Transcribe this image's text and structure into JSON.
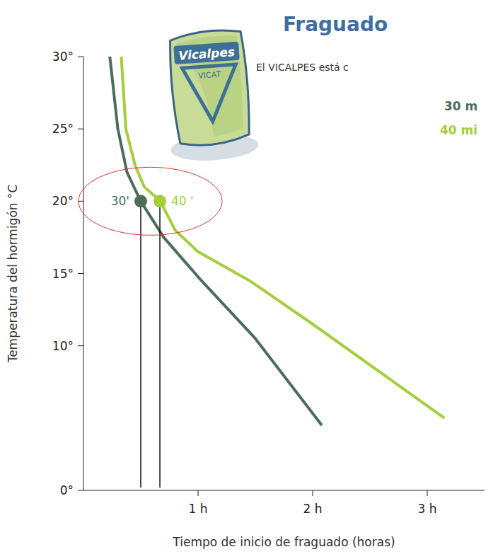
{
  "chart_data": {
    "type": "line",
    "title": "Fraguado",
    "subtitle": "El VICALPES está c",
    "annotations": [
      "30 m",
      "40 mi"
    ],
    "logo": [
      "Vicalpes",
      "VICAT"
    ],
    "x_label": "Tiempo de inicio de fraguado (horas)",
    "y_label": "Temperatura del hormigón °C",
    "xlim": [
      0,
      3.5
    ],
    "xticks": [
      {
        "value": 1,
        "label": "1 h"
      },
      {
        "value": 2,
        "label": "2 h"
      },
      {
        "value": 3,
        "label": "3 h"
      }
    ],
    "ylim": [
      0,
      30
    ],
    "yticks": [
      {
        "value": 0,
        "label": "0°"
      },
      {
        "value": 10,
        "label": "10°"
      },
      {
        "value": 15,
        "label": "15°"
      },
      {
        "value": 20,
        "label": "20°"
      },
      {
        "value": 25,
        "label": "25°"
      },
      {
        "value": 30,
        "label": "30°"
      }
    ],
    "grid": false,
    "series": [
      {
        "color": "#4a6e58",
        "x": [
          0.23,
          0.3,
          0.38,
          0.5,
          0.7,
          1.03,
          1.5,
          2.08
        ],
        "values": [
          30,
          25,
          22,
          20,
          17.5,
          14.5,
          10.5,
          4.5
        ]
      },
      {
        "color": "#a3cf3a",
        "x": [
          0.33,
          0.37,
          0.45,
          0.53,
          0.67,
          0.8,
          1.0,
          1.45,
          2.0,
          3.15
        ],
        "values": [
          30,
          25,
          22.5,
          21,
          20,
          18,
          16.5,
          14.5,
          11.5,
          5
        ]
      }
    ],
    "highlights": [
      {
        "x": 0.5,
        "y": 20,
        "label": "30'"
      },
      {
        "x": 0.667,
        "y": 20,
        "label": "40 '"
      }
    ]
  }
}
